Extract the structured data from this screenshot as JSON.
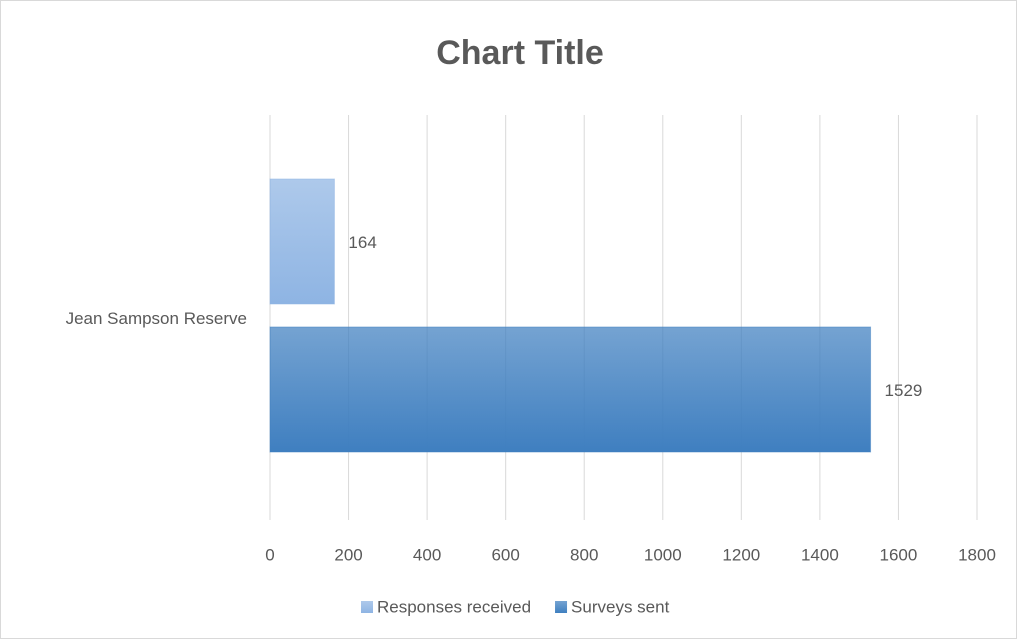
{
  "chart_data": {
    "type": "bar",
    "orientation": "horizontal",
    "title": "Chart Title",
    "categories": [
      "Jean Sampson Reserve"
    ],
    "series": [
      {
        "name": "Responses received",
        "color": "#8eb4e3",
        "values": [
          164
        ]
      },
      {
        "name": "Surveys sent",
        "color": "#3f7fc0",
        "values": [
          1529
        ]
      }
    ],
    "xlim": [
      0,
      1800
    ],
    "xticks": [
      0,
      200,
      400,
      600,
      800,
      1000,
      1200,
      1400,
      1600,
      1800
    ],
    "grid": true,
    "legend": "bottom"
  }
}
